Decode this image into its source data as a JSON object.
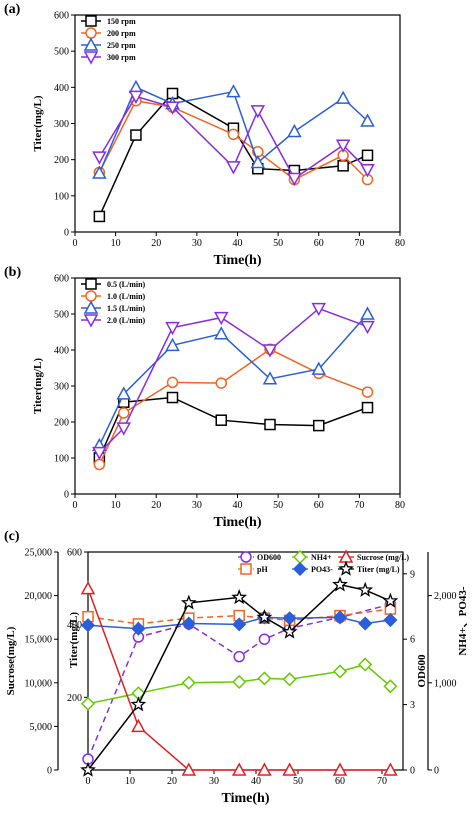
{
  "colors": {
    "black": "#000000",
    "orange": "#f26522",
    "blue": "#2b5fd9",
    "purple": "#8a2be2",
    "green": "#66cc00",
    "red": "#e02020"
  },
  "chart_data": [
    {
      "panel": "(a)",
      "type": "line",
      "xlabel": "Time(h)",
      "ylabel": "Titer(mg/L)",
      "xlim": [
        0,
        80
      ],
      "ylim": [
        0,
        600
      ],
      "xticks": [
        0,
        10,
        20,
        30,
        40,
        50,
        60,
        70,
        80
      ],
      "yticks": [
        0,
        100,
        200,
        300,
        400,
        500,
        600
      ],
      "legend_position": "top-left",
      "series": [
        {
          "name": "150 rpm",
          "marker": "square",
          "color": "#000000",
          "x": [
            6,
            15,
            24,
            39,
            45,
            54,
            66,
            72
          ],
          "y": [
            43,
            268,
            383,
            287,
            175,
            170,
            183,
            212
          ]
        },
        {
          "name": "200 rpm",
          "marker": "circle",
          "color": "#f26522",
          "x": [
            6,
            15,
            24,
            39,
            45,
            54,
            66,
            72
          ],
          "y": [
            165,
            363,
            345,
            270,
            222,
            145,
            212,
            145
          ]
        },
        {
          "name": "250 rpm",
          "marker": "triangle-up",
          "color": "#2b5fd9",
          "x": [
            6,
            15,
            24,
            39,
            45,
            54,
            66,
            72
          ],
          "y": [
            163,
            400,
            355,
            388,
            192,
            278,
            370,
            307
          ]
        },
        {
          "name": "300 rpm",
          "marker": "triangle-down",
          "color": "#8a2be2",
          "x": [
            6,
            15,
            24,
            39,
            45,
            54,
            66,
            72
          ],
          "y": [
            207,
            375,
            345,
            180,
            335,
            148,
            240,
            172
          ]
        }
      ]
    },
    {
      "panel": "(b)",
      "type": "line",
      "xlabel": "Time(h)",
      "ylabel": "Titer(mg/L)",
      "xlim": [
        0,
        80
      ],
      "ylim": [
        0,
        600
      ],
      "xticks": [
        0,
        10,
        20,
        30,
        40,
        50,
        60,
        70,
        80
      ],
      "yticks": [
        0,
        100,
        200,
        300,
        400,
        500,
        600
      ],
      "legend_position": "top-left",
      "series": [
        {
          "name": "0.5 (L/min)",
          "marker": "square",
          "color": "#000000",
          "x": [
            6,
            12,
            24,
            36,
            48,
            60,
            72
          ],
          "y": [
            100,
            255,
            268,
            205,
            193,
            190,
            240
          ]
        },
        {
          "name": "1.0 (L/min)",
          "marker": "circle",
          "color": "#f26522",
          "x": [
            6,
            12,
            24,
            36,
            48,
            60,
            72
          ],
          "y": [
            82,
            225,
            310,
            308,
            402,
            335,
            283
          ]
        },
        {
          "name": "1.5 (L/min)",
          "marker": "triangle-up",
          "color": "#2b5fd9",
          "x": [
            6,
            12,
            24,
            36,
            48,
            60,
            72
          ],
          "y": [
            135,
            278,
            413,
            445,
            320,
            347,
            500
          ]
        },
        {
          "name": "2.0 (L/min)",
          "marker": "triangle-down",
          "color": "#8a2be2",
          "x": [
            6,
            12,
            24,
            36,
            48,
            60,
            72
          ],
          "y": [
            115,
            183,
            462,
            490,
            400,
            515,
            465
          ]
        }
      ]
    },
    {
      "panel": "(c)",
      "type": "line",
      "xlabel": "Time(h)",
      "xlim": [
        0,
        75
      ],
      "xticks": [
        0,
        10,
        20,
        30,
        40,
        50,
        60,
        70
      ],
      "axes": {
        "sucrose": {
          "label": "Sucrose(mg/L)",
          "range": [
            0,
            25000
          ],
          "ticks": [
            0,
            5000,
            10000,
            15000,
            20000,
            25000
          ],
          "tick_labels": [
            "0",
            "5,000",
            "10,000",
            "15,000",
            "20,000",
            "25,000"
          ]
        },
        "titer": {
          "label": "Titer(mg/L)",
          "range": [
            0,
            600
          ],
          "ticks": [
            200,
            400,
            600
          ],
          "tick_labels": [
            "200",
            "400",
            "600"
          ]
        },
        "od": {
          "label": "OD600",
          "range": [
            0,
            10
          ],
          "ticks": [
            0,
            3,
            6,
            9
          ],
          "tick_labels": [
            "0",
            "3",
            "6",
            "9"
          ]
        },
        "ion": {
          "label": "NH4+、PO43-",
          "range": [
            0,
            2500
          ],
          "ticks": [
            0,
            1000,
            2000
          ],
          "tick_labels": [
            "0",
            "1,000",
            "2,000"
          ]
        }
      },
      "series": [
        {
          "name": "OD600",
          "marker": "circle",
          "color": "#8a2be2",
          "dashed": true,
          "axis": "od",
          "x": [
            0,
            12,
            24,
            36,
            42,
            48,
            60,
            72
          ],
          "y": [
            0.5,
            6.1,
            6.7,
            5.2,
            6.0,
            6.5,
            7.0,
            7.6
          ]
        },
        {
          "name": "pH",
          "marker": "square",
          "color": "#f26522",
          "dashed": true,
          "axis": "titer",
          "x": [
            0,
            12,
            24,
            36,
            42,
            48,
            60,
            72
          ],
          "y": [
            422,
            402,
            418,
            425,
            418,
            412,
            425,
            443
          ]
        },
        {
          "name": "NH4+",
          "marker": "diamond",
          "color": "#66cc00",
          "dashed": false,
          "axis": "ion",
          "x": [
            0,
            12,
            24,
            36,
            42,
            48,
            60,
            66,
            72
          ],
          "y": [
            760,
            880,
            1000,
            1010,
            1050,
            1040,
            1130,
            1210,
            960
          ]
        },
        {
          "name": "PO43-",
          "marker": "filled-diamond",
          "color": "#2b5fd9",
          "dashed": false,
          "axis": "ion",
          "x": [
            0,
            12,
            24,
            36,
            42,
            48,
            60,
            66,
            72
          ],
          "y": [
            1660,
            1620,
            1680,
            1670,
            1750,
            1740,
            1750,
            1680,
            1720
          ]
        },
        {
          "name": "Sucrose (mg/L)",
          "marker": "triangle-up",
          "color": "#e02020",
          "dashed": false,
          "axis": "sucrose",
          "x": [
            0,
            12,
            24,
            36,
            42,
            48,
            60,
            72
          ],
          "y": [
            20800,
            5000,
            0,
            0,
            0,
            0,
            0,
            0
          ]
        },
        {
          "name": "Titer (mg/L)",
          "marker": "star",
          "color": "#000000",
          "dashed": false,
          "axis": "titer",
          "x": [
            0,
            12,
            24,
            36,
            42,
            48,
            60,
            66,
            72
          ],
          "y": [
            0,
            180,
            460,
            475,
            420,
            380,
            510,
            495,
            465
          ]
        }
      ]
    }
  ]
}
